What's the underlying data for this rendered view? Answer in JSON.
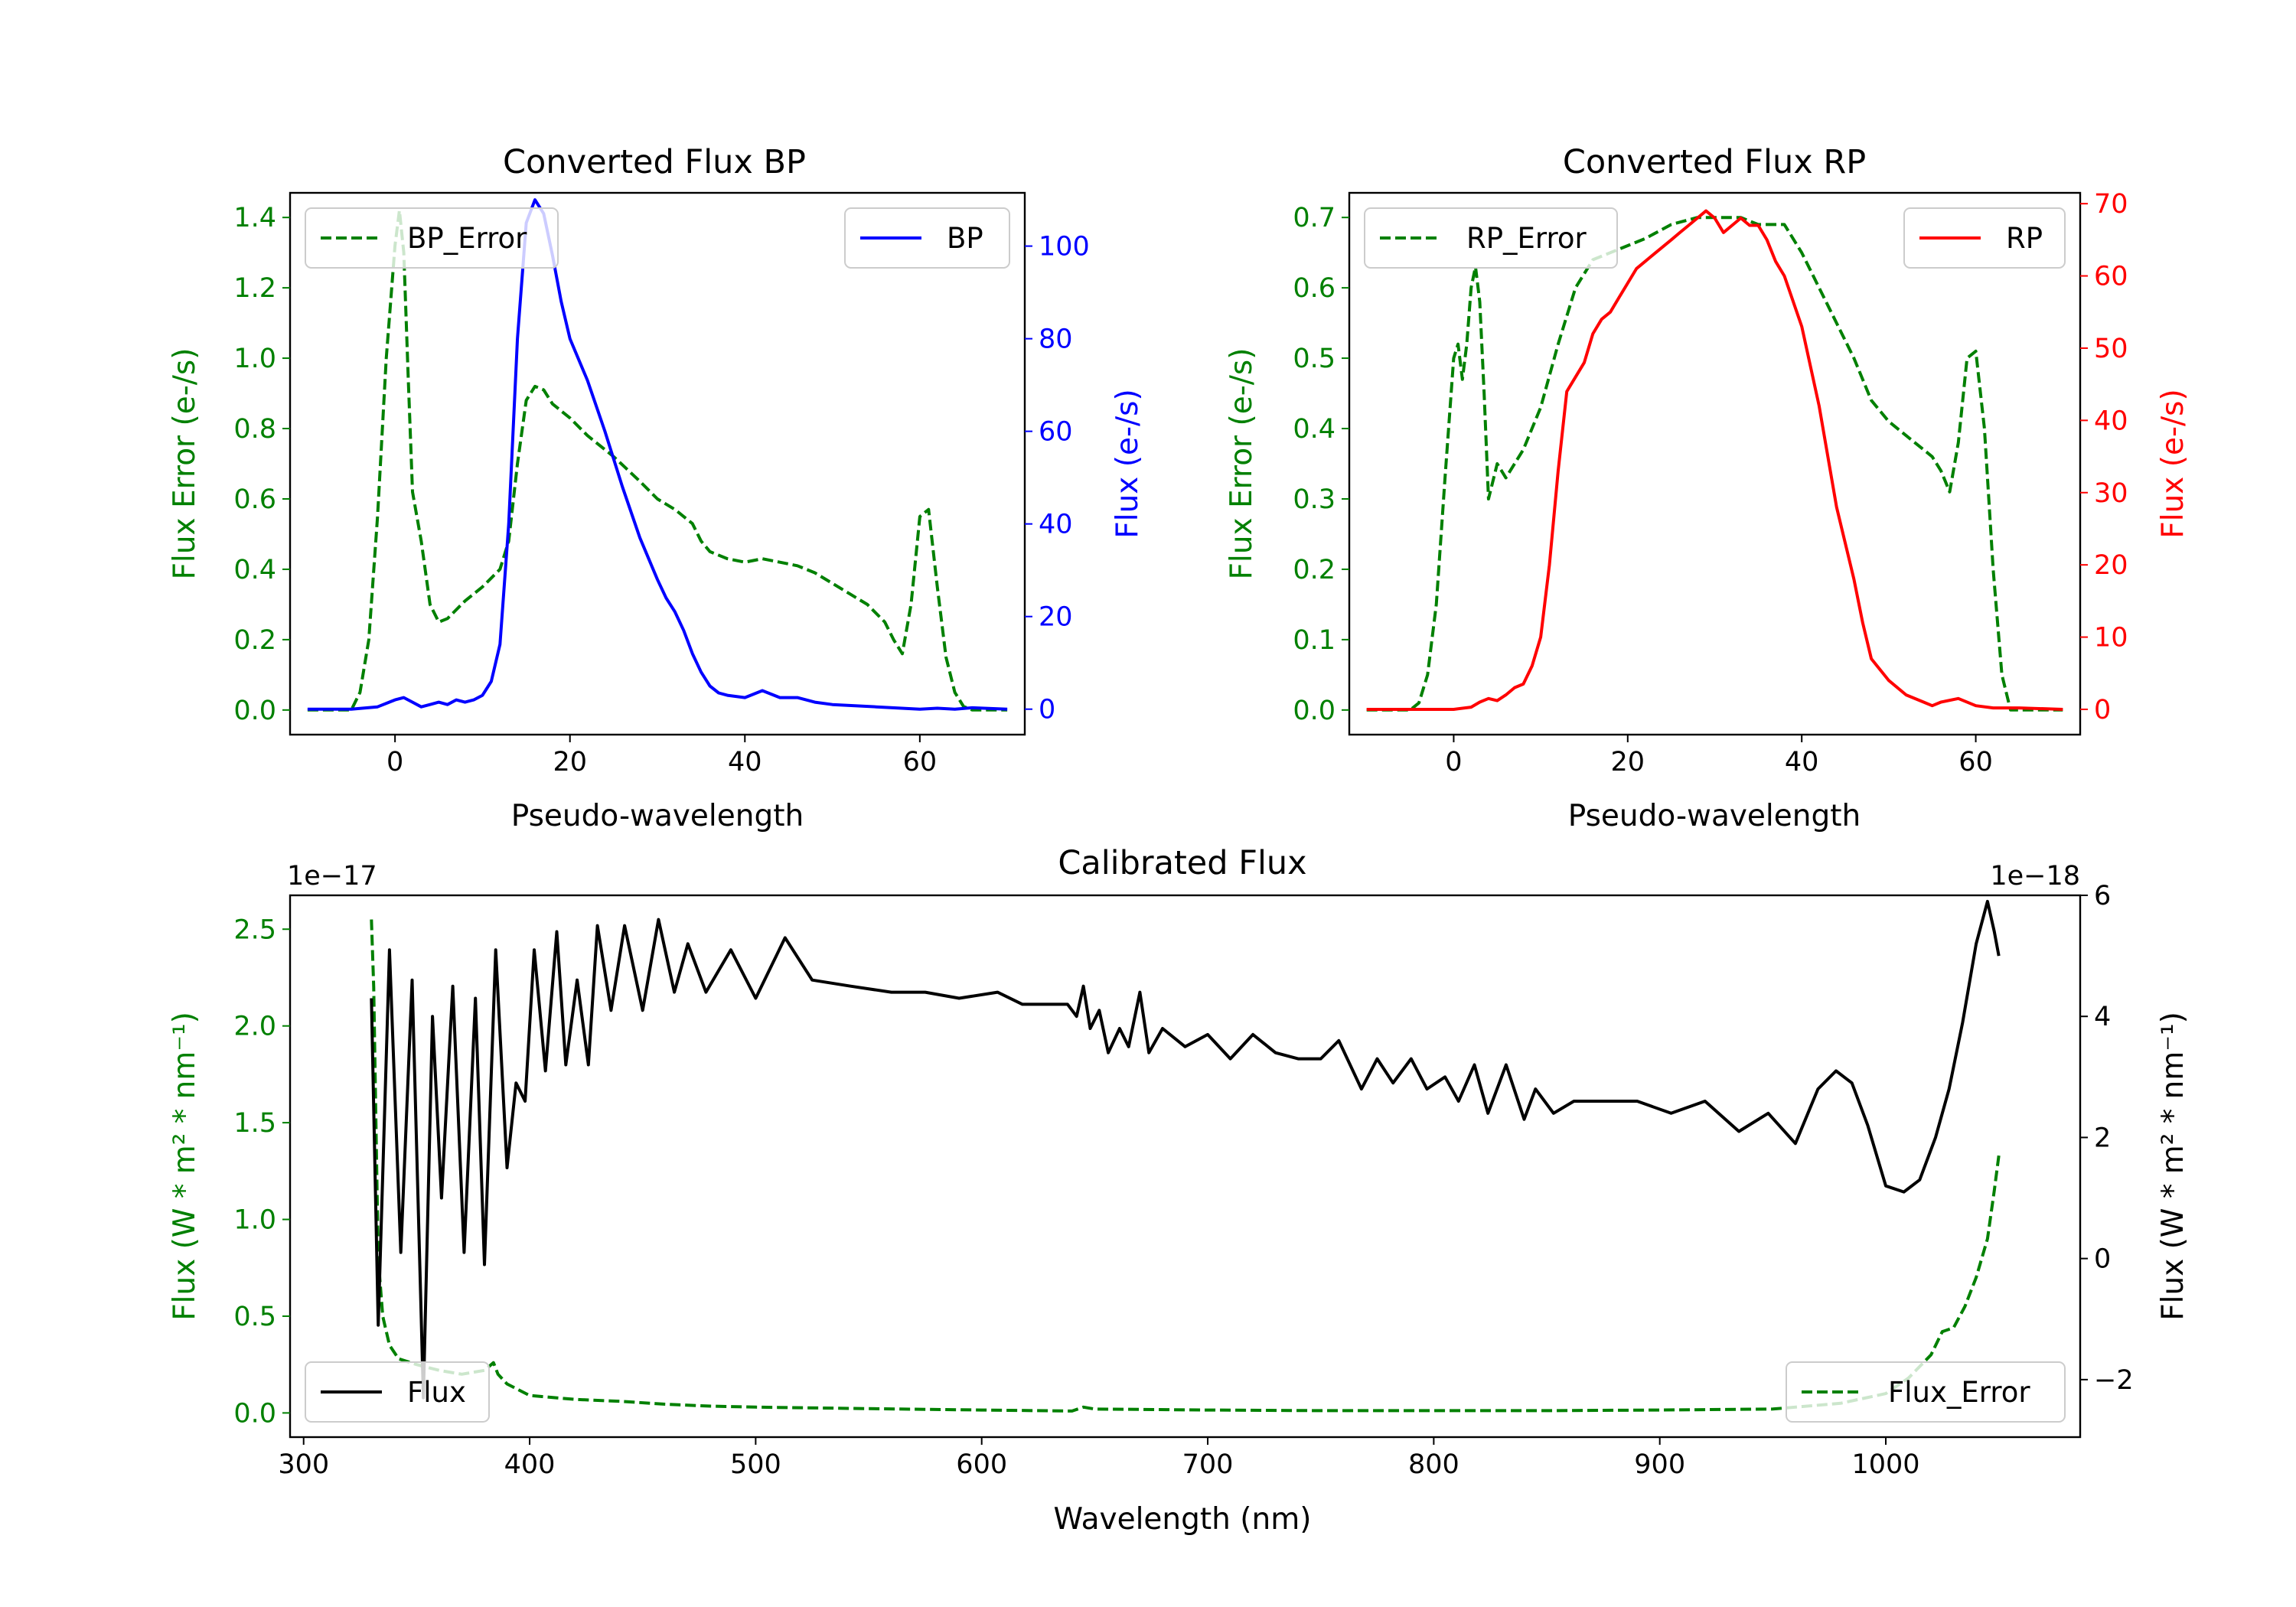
{
  "chart_data": [
    {
      "id": "bp",
      "type": "line",
      "title": "Converted Flux BP",
      "xlabel": "Pseudo-wavelength",
      "xlim": [
        -12,
        72
      ],
      "xticks": [
        0,
        20,
        40,
        60
      ],
      "left_axis": {
        "label": "Flux Error (e-/s)",
        "color": "#008000",
        "ylim": [
          -0.07,
          1.47
        ],
        "ticks": [
          0.0,
          0.2,
          0.4,
          0.6,
          0.8,
          1.0,
          1.2,
          1.4
        ],
        "tick_labels": [
          "0.0",
          "0.2",
          "0.4",
          "0.6",
          "0.8",
          "1.0",
          "1.2",
          "1.4"
        ]
      },
      "right_axis": {
        "label": "Flux (e-/s)",
        "color": "#0000ff",
        "ylim": [
          -5.5,
          111.5
        ],
        "ticks": [
          0,
          20,
          40,
          60,
          80,
          100
        ],
        "tick_labels": [
          "0",
          "20",
          "40",
          "60",
          "80",
          "100"
        ]
      },
      "series": [
        {
          "name": "BP_Error",
          "axis": "left",
          "color": "#008000",
          "dash": true,
          "x": [
            -10,
            -5,
            -4,
            -3,
            -2,
            -1,
            0,
            0.5,
            1,
            1.5,
            2,
            3,
            4,
            5,
            6,
            8,
            10,
            12,
            13,
            14,
            15,
            16,
            17,
            18,
            20,
            22,
            25,
            28,
            30,
            32,
            34,
            35,
            36,
            38,
            40,
            42,
            44,
            46,
            48,
            50,
            52,
            54,
            56,
            57,
            58,
            59,
            60,
            61,
            62,
            63,
            64,
            65,
            66,
            70
          ],
          "values": [
            0.0,
            0.0,
            0.05,
            0.2,
            0.55,
            1.0,
            1.32,
            1.42,
            1.3,
            0.95,
            0.62,
            0.48,
            0.3,
            0.25,
            0.26,
            0.31,
            0.35,
            0.4,
            0.48,
            0.7,
            0.88,
            0.92,
            0.91,
            0.87,
            0.83,
            0.78,
            0.72,
            0.65,
            0.6,
            0.57,
            0.53,
            0.48,
            0.45,
            0.43,
            0.42,
            0.43,
            0.42,
            0.41,
            0.39,
            0.36,
            0.33,
            0.3,
            0.25,
            0.2,
            0.16,
            0.3,
            0.55,
            0.57,
            0.35,
            0.15,
            0.05,
            0.01,
            0.0,
            0.0
          ]
        },
        {
          "name": "BP",
          "axis": "right",
          "color": "#0000ff",
          "dash": false,
          "x": [
            -10,
            -5,
            -2,
            0,
            1,
            2,
            3,
            4,
            5,
            6,
            7,
            8,
            9,
            10,
            11,
            12,
            13,
            14,
            15,
            16,
            17,
            18,
            19,
            20,
            22,
            24,
            26,
            28,
            30,
            31,
            32,
            33,
            34,
            35,
            36,
            37,
            38,
            40,
            42,
            44,
            46,
            48,
            50,
            55,
            60,
            62,
            64,
            66,
            70
          ],
          "values": [
            0,
            0,
            0.5,
            2,
            2.5,
            1.5,
            0.5,
            1,
            1.5,
            1,
            2,
            1.5,
            2,
            3,
            6,
            14,
            40,
            80,
            105,
            110,
            107,
            98,
            88,
            80,
            71,
            60,
            48,
            37,
            28,
            24,
            21,
            17,
            12,
            8,
            5,
            3.5,
            3,
            2.5,
            4,
            2.5,
            2.5,
            1.5,
            1,
            0.5,
            0,
            0.2,
            0,
            0.3,
            0
          ]
        }
      ],
      "legends": [
        {
          "text": "BP_Error",
          "position": "top-left"
        },
        {
          "text": "BP",
          "position": "top-right"
        }
      ]
    },
    {
      "id": "rp",
      "type": "line",
      "title": "Converted Flux RP",
      "xlabel": "Pseudo-wavelength",
      "xlim": [
        -12,
        72
      ],
      "xticks": [
        0,
        20,
        40,
        60
      ],
      "left_axis": {
        "label": "Flux Error (e-/s)",
        "color": "#008000",
        "ylim": [
          -0.035,
          0.735
        ],
        "ticks": [
          0.0,
          0.1,
          0.2,
          0.3,
          0.4,
          0.5,
          0.6,
          0.7
        ],
        "tick_labels": [
          "0.0",
          "0.1",
          "0.2",
          "0.3",
          "0.4",
          "0.5",
          "0.6",
          "0.7"
        ]
      },
      "right_axis": {
        "label": "Flux (e-/s)",
        "color": "#ff0000",
        "ylim": [
          -3.5,
          71.5
        ],
        "ticks": [
          0,
          10,
          20,
          30,
          40,
          50,
          60,
          70
        ],
        "tick_labels": [
          "0",
          "10",
          "20",
          "30",
          "40",
          "50",
          "60",
          "70"
        ]
      },
      "series": [
        {
          "name": "RP_Error",
          "axis": "left",
          "color": "#008000",
          "dash": true,
          "x": [
            -10,
            -5,
            -4,
            -3,
            -2,
            -1,
            0,
            0.5,
            1,
            1.5,
            2,
            2.5,
            3,
            3.5,
            4,
            5,
            6,
            8,
            10,
            12,
            14,
            16,
            18,
            20,
            22,
            25,
            28,
            30,
            33,
            35,
            38,
            40,
            42,
            44,
            46,
            48,
            50,
            52,
            54,
            55,
            56,
            57,
            58,
            59,
            60,
            61,
            62,
            63,
            64,
            70
          ],
          "values": [
            0.0,
            0.0,
            0.01,
            0.05,
            0.15,
            0.33,
            0.5,
            0.52,
            0.47,
            0.52,
            0.6,
            0.63,
            0.58,
            0.45,
            0.3,
            0.35,
            0.33,
            0.37,
            0.43,
            0.52,
            0.6,
            0.64,
            0.65,
            0.66,
            0.67,
            0.69,
            0.7,
            0.7,
            0.7,
            0.69,
            0.69,
            0.65,
            0.6,
            0.55,
            0.5,
            0.44,
            0.41,
            0.39,
            0.37,
            0.36,
            0.34,
            0.31,
            0.38,
            0.5,
            0.51,
            0.4,
            0.2,
            0.05,
            0.0,
            0.0
          ]
        },
        {
          "name": "RP",
          "axis": "right",
          "color": "#ff0000",
          "dash": false,
          "x": [
            -10,
            -5,
            0,
            2,
            3,
            4,
            5,
            6,
            7,
            8,
            9,
            10,
            11,
            12,
            13,
            14,
            15,
            16,
            17,
            18,
            19,
            20,
            21,
            22,
            23,
            24,
            25,
            26,
            27,
            28,
            29,
            30,
            31,
            32,
            33,
            34,
            35,
            36,
            37,
            38,
            40,
            42,
            44,
            46,
            47,
            48,
            50,
            52,
            54,
            55,
            56,
            58,
            60,
            62,
            65,
            70
          ],
          "values": [
            0,
            0,
            0,
            0.3,
            1,
            1.5,
            1.2,
            2,
            3,
            3.5,
            6,
            10,
            20,
            33,
            44,
            46,
            48,
            52,
            54,
            55,
            57,
            59,
            61,
            62,
            63,
            64,
            65,
            66,
            67,
            68,
            69,
            68,
            66,
            67,
            68,
            67,
            67,
            65,
            62,
            60,
            53,
            42,
            28,
            18,
            12,
            7,
            4,
            2,
            1,
            0.5,
            1,
            1.5,
            0.5,
            0.2,
            0.2,
            0
          ]
        }
      ],
      "legends": [
        {
          "text": "RP_Error",
          "position": "top-left"
        },
        {
          "text": "RP",
          "position": "top-right"
        }
      ]
    },
    {
      "id": "calibrated",
      "type": "line",
      "title": "Calibrated Flux",
      "xlabel": "Wavelength (nm)",
      "xlim": [
        294,
        1086
      ],
      "xticks": [
        300,
        400,
        500,
        600,
        700,
        800,
        900,
        1000
      ],
      "left_axis": {
        "label": "Flux (W * m² * nm⁻¹)",
        "color": "#008000",
        "offset_text": "1e−17",
        "ylim": [
          -0.125,
          2.675
        ],
        "ticks": [
          0.0,
          0.5,
          1.0,
          1.5,
          2.0,
          2.5
        ],
        "tick_labels": [
          "0.0",
          "0.5",
          "1.0",
          "1.5",
          "2.0",
          "2.5"
        ]
      },
      "right_axis": {
        "label": "Flux (W * m² * nm⁻¹)",
        "color": "#000000",
        "offset_text": "1e−18",
        "ylim": [
          -2.95,
          6.0
        ],
        "ticks": [
          -2,
          0,
          2,
          4,
          6
        ],
        "tick_labels": [
          "−2",
          "0",
          "2",
          "4",
          "6"
        ]
      },
      "series": [
        {
          "name": "Flux_Error",
          "axis": "left",
          "color": "#008000",
          "dash": true,
          "x": [
            330,
            331,
            332,
            333,
            335,
            338,
            342,
            350,
            360,
            370,
            380,
            384,
            386,
            390,
            400,
            420,
            440,
            460,
            480,
            500,
            550,
            600,
            640,
            645,
            650,
            700,
            750,
            800,
            850,
            900,
            950,
            980,
            1000,
            1010,
            1020,
            1025,
            1030,
            1035,
            1040,
            1045,
            1048,
            1050
          ],
          "values": [
            2.55,
            2.2,
            1.5,
            0.8,
            0.5,
            0.35,
            0.28,
            0.25,
            0.22,
            0.2,
            0.22,
            0.26,
            0.2,
            0.15,
            0.09,
            0.07,
            0.06,
            0.045,
            0.035,
            0.03,
            0.022,
            0.015,
            0.01,
            0.03,
            0.02,
            0.015,
            0.012,
            0.012,
            0.012,
            0.015,
            0.02,
            0.05,
            0.1,
            0.18,
            0.3,
            0.42,
            0.44,
            0.55,
            0.7,
            0.9,
            1.15,
            1.33
          ]
        },
        {
          "name": "Flux",
          "axis": "right",
          "color": "#000000",
          "dash": false,
          "x": [
            330,
            333,
            338,
            343,
            348,
            353,
            357,
            361,
            366,
            371,
            376,
            380,
            385,
            390,
            394,
            398,
            402,
            407,
            412,
            416,
            421,
            426,
            430,
            436,
            442,
            450,
            457,
            464,
            470,
            478,
            489,
            500,
            513,
            525,
            542,
            560,
            575,
            590,
            607,
            618,
            630,
            638,
            642,
            645,
            648,
            652,
            656,
            661,
            665,
            670,
            674,
            680,
            690,
            700,
            710,
            720,
            730,
            740,
            750,
            758,
            768,
            775,
            782,
            790,
            797,
            805,
            811,
            818,
            824,
            832,
            840,
            845,
            853,
            862,
            875,
            890,
            905,
            920,
            935,
            948,
            960,
            970,
            978,
            985,
            992,
            1000,
            1008,
            1015,
            1022,
            1028,
            1034,
            1040,
            1045,
            1048,
            1050
          ],
          "values": [
            4.3,
            -1.1,
            5.1,
            0.1,
            4.6,
            -2.3,
            4.0,
            1.0,
            4.5,
            0.1,
            4.3,
            -0.1,
            5.1,
            1.5,
            2.9,
            2.6,
            5.1,
            3.1,
            5.4,
            3.2,
            4.6,
            3.2,
            5.5,
            4.1,
            5.5,
            4.1,
            5.6,
            4.4,
            5.2,
            4.4,
            5.1,
            4.3,
            5.3,
            4.6,
            4.5,
            4.4,
            4.4,
            4.3,
            4.4,
            4.2,
            4.2,
            4.2,
            4.0,
            4.5,
            3.8,
            4.1,
            3.4,
            3.8,
            3.5,
            4.4,
            3.4,
            3.8,
            3.5,
            3.7,
            3.3,
            3.7,
            3.4,
            3.3,
            3.3,
            3.6,
            2.8,
            3.3,
            2.9,
            3.3,
            2.8,
            3.0,
            2.6,
            3.2,
            2.4,
            3.2,
            2.3,
            2.8,
            2.4,
            2.6,
            2.6,
            2.6,
            2.4,
            2.6,
            2.1,
            2.4,
            1.9,
            2.8,
            3.1,
            2.9,
            2.2,
            1.2,
            1.1,
            1.3,
            2.0,
            2.8,
            3.9,
            5.2,
            5.9,
            5.4,
            5.0
          ]
        }
      ],
      "legends": [
        {
          "text": "Flux",
          "position": "bottom-left"
        },
        {
          "text": "Flux_Error",
          "position": "bottom-right"
        }
      ]
    }
  ]
}
